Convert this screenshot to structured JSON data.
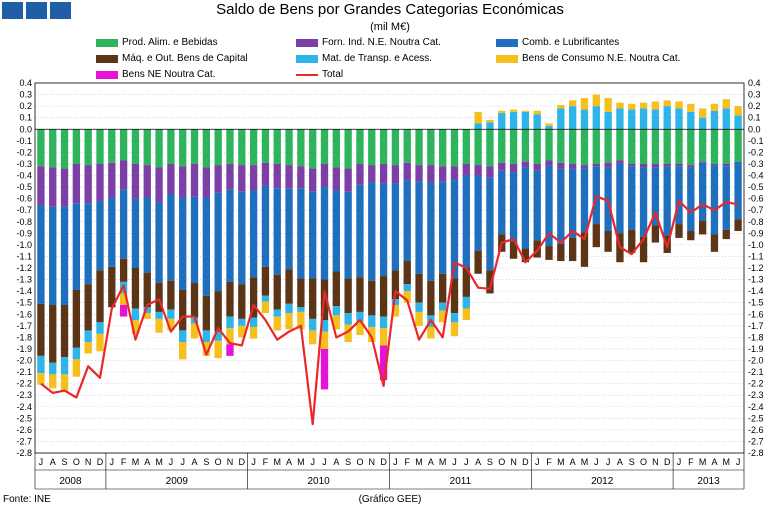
{
  "header": {
    "title": "Saldo de Bens por Grandes Categorias Económicas",
    "subtitle": "(mil M€)"
  },
  "footer": {
    "source": "Fonte: INE",
    "credit": "(Gráfico GEE)"
  },
  "colors": {
    "bg": "#ffffff",
    "grid": "#9aa0a8",
    "axis": "#000000"
  },
  "chart_data": {
    "type": "bar",
    "stacked": true,
    "title": "Saldo de Bens por Grandes Categorias Económicas",
    "subtitle": "(mil M€)",
    "ylim": [
      -2.8,
      0.4
    ],
    "yticks": [
      "0.4",
      "0.3",
      "0.2",
      "0.1",
      "0.0",
      "-0.1",
      "-0.2",
      "-0.3",
      "-0.4",
      "-0.5",
      "-0.6",
      "-0.7",
      "-0.8",
      "-0.9",
      "-1.0",
      "-1.1",
      "-1.2",
      "-1.3",
      "-1.4",
      "-1.5",
      "-1.6",
      "-1.7",
      "-1.8",
      "-1.9",
      "-2.0",
      "-2.1",
      "-2.2",
      "-2.3",
      "-2.4",
      "-2.5",
      "-2.6",
      "-2.7",
      "-2.8"
    ],
    "months": [
      "J",
      "A",
      "S",
      "O",
      "N",
      "D",
      "J",
      "F",
      "M",
      "A",
      "M",
      "J",
      "J",
      "A",
      "S",
      "O",
      "N",
      "D",
      "J",
      "F",
      "M",
      "A",
      "M",
      "J",
      "J",
      "A",
      "S",
      "O",
      "N",
      "D",
      "J",
      "F",
      "M",
      "A",
      "M",
      "J",
      "J",
      "A",
      "S",
      "O",
      "N",
      "D",
      "J",
      "F",
      "M",
      "A",
      "M",
      "J",
      "J",
      "A",
      "S",
      "O",
      "N",
      "D",
      "J",
      "F",
      "M",
      "A",
      "M",
      "J"
    ],
    "years": [
      {
        "label": "2008",
        "start": 0,
        "count": 6
      },
      {
        "label": "2009",
        "start": 6,
        "count": 12
      },
      {
        "label": "2010",
        "start": 18,
        "count": 12
      },
      {
        "label": "2011",
        "start": 30,
        "count": 12
      },
      {
        "label": "2012",
        "start": 42,
        "count": 12
      },
      {
        "label": "2013",
        "start": 54,
        "count": 6
      }
    ],
    "legend": [
      "Prod. Alim. e Bebidas",
      "Forn. Ind. N.E. Noutra Cat.",
      "Comb. e Lubrificantes",
      "Máq. e Out. Bens de Capital",
      "Mat. de Transp. e Acess.",
      "Bens de Consumo N.E. Noutra Cat.",
      "Bens NE Noutra Cat.",
      "Total"
    ],
    "series": [
      {
        "name": "Prod. Alim. e Bebidas",
        "color": "#2fb45e",
        "values": [
          -0.32,
          -0.33,
          -0.34,
          -0.3,
          -0.31,
          -0.3,
          -0.29,
          -0.27,
          -0.3,
          -0.31,
          -0.33,
          -0.3,
          -0.32,
          -0.3,
          -0.33,
          -0.31,
          -0.3,
          -0.31,
          -0.31,
          -0.29,
          -0.3,
          -0.31,
          -0.32,
          -0.34,
          -0.3,
          -0.33,
          -0.34,
          -0.3,
          -0.31,
          -0.3,
          -0.31,
          -0.29,
          -0.31,
          -0.31,
          -0.32,
          -0.32,
          -0.3,
          -0.31,
          -0.32,
          -0.29,
          -0.3,
          -0.28,
          -0.3,
          -0.27,
          -0.29,
          -0.3,
          -0.31,
          -0.3,
          -0.29,
          -0.27,
          -0.3,
          -0.3,
          -0.3,
          -0.3,
          -0.3,
          -0.31,
          -0.28,
          -0.3,
          -0.3,
          -0.28
        ]
      },
      {
        "name": "Forn. Ind. N.E. Noutra Cat.",
        "color": "#7c3fa6",
        "values": [
          -0.34,
          -0.34,
          -0.33,
          -0.34,
          -0.33,
          -0.32,
          -0.3,
          -0.25,
          -0.3,
          -0.28,
          -0.3,
          -0.26,
          -0.27,
          -0.28,
          -0.26,
          -0.24,
          -0.22,
          -0.23,
          -0.22,
          -0.2,
          -0.21,
          -0.2,
          -0.19,
          -0.2,
          -0.2,
          -0.2,
          -0.2,
          -0.18,
          -0.15,
          -0.17,
          -0.16,
          -0.15,
          -0.14,
          -0.15,
          -0.13,
          -0.12,
          -0.1,
          -0.09,
          -0.1,
          -0.07,
          -0.07,
          -0.05,
          -0.06,
          -0.04,
          -0.05,
          -0.04,
          -0.03,
          -0.02,
          -0.04,
          -0.03,
          -0.02,
          -0.03,
          -0.03,
          -0.02,
          -0.02,
          -0.02,
          -0.01,
          -0.01,
          -0.02,
          0.0
        ]
      },
      {
        "name": "Comb. e Lubrificantes",
        "color": "#1f6fbf",
        "values": [
          -0.85,
          -0.85,
          -0.85,
          -0.75,
          -0.7,
          -0.6,
          -0.6,
          -0.6,
          -0.6,
          -0.65,
          -0.7,
          -0.75,
          -0.8,
          -0.75,
          -0.85,
          -0.85,
          -0.8,
          -0.8,
          -0.75,
          -0.7,
          -0.75,
          -0.7,
          -0.78,
          -0.75,
          -0.8,
          -0.7,
          -0.75,
          -0.8,
          -0.85,
          -0.8,
          -0.75,
          -0.7,
          -0.8,
          -0.85,
          -0.8,
          -0.85,
          -0.8,
          -0.65,
          -0.8,
          -0.55,
          -0.6,
          -0.7,
          -0.6,
          -0.7,
          -0.65,
          -0.6,
          -0.55,
          -0.5,
          -0.55,
          -0.6,
          -0.55,
          -0.6,
          -0.5,
          -0.6,
          -0.5,
          -0.55,
          -0.5,
          -0.6,
          -0.55,
          -0.5
        ]
      },
      {
        "name": "Máq. e Out. Bens de Capital",
        "color": "#5c3516",
        "values": [
          -0.45,
          -0.5,
          -0.45,
          -0.5,
          -0.4,
          -0.45,
          -0.35,
          -0.2,
          -0.35,
          -0.3,
          -0.25,
          -0.25,
          -0.35,
          -0.3,
          -0.3,
          -0.35,
          -0.3,
          -0.3,
          -0.35,
          -0.25,
          -0.3,
          -0.3,
          -0.25,
          -0.35,
          -0.35,
          -0.3,
          -0.3,
          -0.3,
          -0.3,
          -0.35,
          -0.25,
          -0.2,
          -0.25,
          -0.3,
          -0.25,
          -0.3,
          -0.25,
          -0.2,
          -0.2,
          -0.15,
          -0.15,
          -0.12,
          -0.15,
          -0.12,
          -0.15,
          -0.2,
          -0.3,
          -0.2,
          -0.18,
          -0.25,
          -0.2,
          -0.22,
          -0.15,
          -0.15,
          -0.12,
          -0.08,
          -0.12,
          -0.15,
          -0.08,
          -0.1
        ]
      },
      {
        "name": "Mat. de Transp. e Acess.",
        "color": "#2eb4e8",
        "values": [
          -0.15,
          -0.1,
          -0.15,
          -0.1,
          -0.1,
          -0.1,
          0.0,
          -0.1,
          -0.1,
          -0.05,
          -0.06,
          -0.08,
          -0.1,
          -0.05,
          -0.1,
          -0.08,
          -0.1,
          -0.06,
          -0.08,
          -0.05,
          -0.06,
          -0.08,
          -0.04,
          -0.1,
          -0.1,
          -0.08,
          -0.1,
          -0.08,
          -0.1,
          -0.1,
          -0.05,
          -0.06,
          -0.08,
          -0.1,
          -0.07,
          -0.08,
          -0.1,
          0.05,
          0.06,
          0.14,
          0.15,
          0.15,
          0.13,
          0.03,
          0.18,
          0.2,
          0.17,
          0.2,
          0.15,
          0.18,
          0.17,
          0.18,
          0.17,
          0.2,
          0.18,
          0.15,
          0.1,
          0.16,
          0.18,
          0.12
        ]
      },
      {
        "name": "Bens de Consumo N.E. Noutra Cat.",
        "color": "#f5bf1c",
        "values": [
          -0.1,
          -0.12,
          -0.15,
          -0.15,
          -0.1,
          -0.15,
          0.0,
          -0.1,
          -0.12,
          -0.05,
          -0.12,
          -0.1,
          -0.15,
          -0.13,
          -0.12,
          -0.15,
          -0.14,
          -0.1,
          -0.1,
          -0.1,
          -0.12,
          -0.14,
          -0.15,
          -0.12,
          -0.15,
          -0.12,
          -0.15,
          -0.12,
          -0.13,
          -0.15,
          -0.1,
          -0.1,
          -0.12,
          -0.1,
          -0.1,
          -0.12,
          -0.1,
          0.1,
          0.02,
          0.02,
          0.02,
          0.01,
          0.03,
          0.02,
          0.03,
          0.05,
          0.1,
          0.1,
          0.12,
          0.05,
          0.05,
          0.05,
          0.07,
          0.05,
          0.06,
          0.07,
          0.08,
          0.06,
          0.08,
          0.08
        ]
      },
      {
        "name": "Bens NE Noutra Cat.",
        "color": "#e612d6",
        "values": [
          0,
          0,
          0,
          0,
          0,
          0,
          0,
          -0.1,
          0,
          0,
          0,
          0,
          0,
          0,
          0,
          0,
          -0.1,
          0,
          0,
          0,
          0,
          0,
          0,
          0.0,
          -0.35,
          0,
          0,
          0,
          0,
          -0.3,
          0,
          0,
          0,
          0,
          0,
          0,
          0,
          0,
          0,
          0,
          0,
          0,
          0,
          0,
          0,
          0,
          0,
          0,
          0,
          0,
          0,
          0,
          0,
          0,
          0,
          0,
          0,
          0,
          0,
          0
        ]
      }
    ],
    "total": {
      "name": "Total",
      "color": "#e8282a",
      "values": [
        -2.2,
        -2.28,
        -2.26,
        -2.32,
        -2.05,
        -2.15,
        -1.55,
        -1.35,
        -1.82,
        -1.52,
        -1.47,
        -1.75,
        -1.62,
        -1.62,
        -1.95,
        -1.72,
        -1.85,
        -1.87,
        -1.52,
        -1.65,
        -1.82,
        -1.75,
        -1.7,
        -2.55,
        -1.4,
        -1.8,
        -1.75,
        -1.65,
        -1.8,
        -2.22,
        -1.4,
        -1.48,
        -1.82,
        -1.65,
        -1.8,
        -1.15,
        -1.2,
        -1.37,
        -1.38,
        -0.98,
        -0.95,
        -1.15,
        -1.05,
        -0.9,
        -0.98,
        -0.88,
        -0.95,
        -0.58,
        -0.62,
        -1.02,
        -1.08,
        -0.95,
        -0.72,
        -1.02,
        -0.62,
        -0.72,
        -0.65,
        -0.7,
        -0.63,
        -0.65
      ]
    }
  }
}
